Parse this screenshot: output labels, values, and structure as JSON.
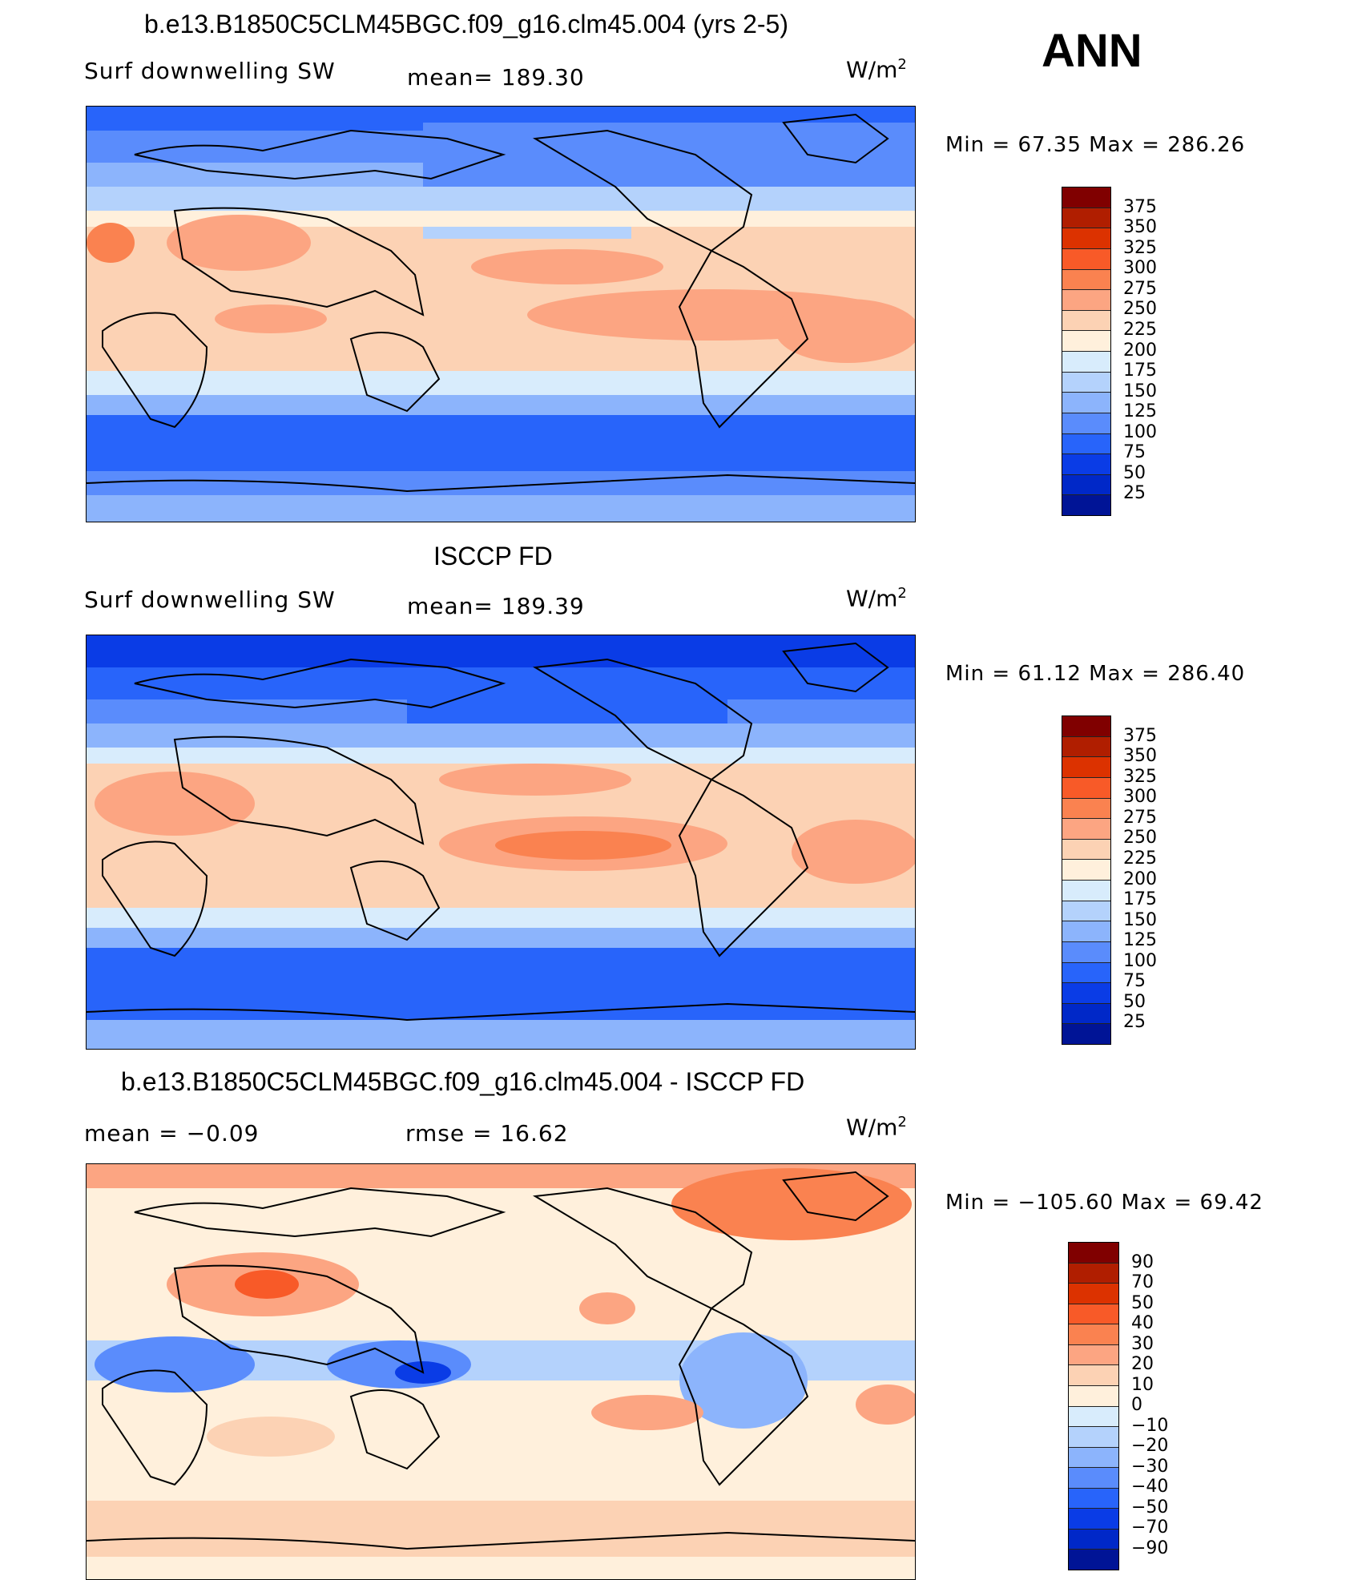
{
  "season": "ANN",
  "panels": [
    {
      "title": "b.e13.B1850C5CLM45BGC.f09_g16.clm45.004 (yrs 2-5)",
      "left_text": "Surf  downwelling  SW",
      "mid_text": "mean=  189.30",
      "units": "W/m",
      "units_exp": "2",
      "minmax": "Min  =    67.35  Max  =  286.26",
      "colorbar": {
        "labels": [
          "375",
          "350",
          "325",
          "300",
          "275",
          "250",
          "225",
          "200",
          "175",
          "150",
          "125",
          "100",
          "75",
          "50",
          "25"
        ],
        "colors": [
          "#800000",
          "#b01e00",
          "#dc3200",
          "#f85a28",
          "#fa8250",
          "#fca582",
          "#fcd2b4",
          "#fff0dc",
          "#d8ecfc",
          "#b4d2fc",
          "#8cb4fc",
          "#5a8cfc",
          "#2864fa",
          "#0a3ce6",
          "#0028c8",
          "#001496"
        ]
      }
    },
    {
      "title": "ISCCP FD",
      "left_text": "Surf  downwelling  SW",
      "mid_text": "mean=  189.39",
      "units": "W/m",
      "units_exp": "2",
      "minmax": "Min  =    61.12  Max  =  286.40",
      "colorbar": {
        "labels": [
          "375",
          "350",
          "325",
          "300",
          "275",
          "250",
          "225",
          "200",
          "175",
          "150",
          "125",
          "100",
          "75",
          "50",
          "25"
        ],
        "colors": [
          "#800000",
          "#b01e00",
          "#dc3200",
          "#f85a28",
          "#fa8250",
          "#fca582",
          "#fcd2b4",
          "#fff0dc",
          "#d8ecfc",
          "#b4d2fc",
          "#8cb4fc",
          "#5a8cfc",
          "#2864fa",
          "#0a3ce6",
          "#0028c8",
          "#001496"
        ]
      }
    },
    {
      "title": "b.e13.B1850C5CLM45BGC.f09_g16.clm45.004 - ISCCP FD",
      "left_text": "mean  =    −0.09",
      "mid_text": "rmse  =    16.62",
      "units": "W/m",
      "units_exp": "2",
      "minmax": "Min  = −105.60  Max  =    69.42",
      "colorbar": {
        "labels": [
          "90",
          "70",
          "50",
          "40",
          "30",
          "20",
          "10",
          "0",
          "−10",
          "−20",
          "−30",
          "−40",
          "−50",
          "−70",
          "−90"
        ],
        "colors": [
          "#800000",
          "#b01e00",
          "#dc3200",
          "#f85a28",
          "#fa8250",
          "#fca582",
          "#fcd2b4",
          "#fff0dc",
          "#d8ecfc",
          "#b4d2fc",
          "#8cb4fc",
          "#5a8cfc",
          "#2864fa",
          "#0a3ce6",
          "#0028c8",
          "#001496"
        ]
      }
    }
  ]
}
